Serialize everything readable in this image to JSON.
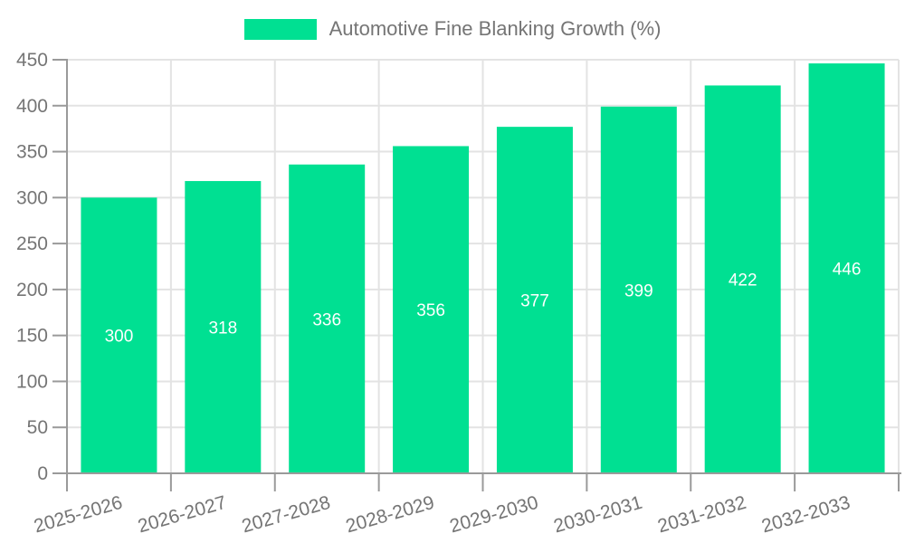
{
  "legend": {
    "label": "Automotive Fine Blanking Growth (%)"
  },
  "colors": {
    "bar": "#00e092",
    "bar_value_label": "#ffffff",
    "grid": "#e3e3e3",
    "axis": "#9a9a9a",
    "tick_label": "#757575",
    "background": "#ffffff"
  },
  "chart_data": {
    "type": "bar",
    "title": "",
    "categories": [
      "2025-2026",
      "2026-2027",
      "2027-2028",
      "2028-2029",
      "2029-2030",
      "2030-2031",
      "2031-2032",
      "2032-2033"
    ],
    "series": [
      {
        "name": "Automotive Fine Blanking Growth (%)",
        "values": [
          300,
          318,
          336,
          356,
          377,
          399,
          422,
          446
        ]
      }
    ],
    "xlabel": "",
    "ylabel": "",
    "ylim": [
      0,
      450
    ],
    "ytick_step": 50,
    "yticks": [
      0,
      50,
      100,
      150,
      200,
      250,
      300,
      350,
      400,
      450
    ],
    "grid": true,
    "legend_position": "top",
    "x_label_rotation": -16,
    "bar_value_labels_shown": true
  }
}
